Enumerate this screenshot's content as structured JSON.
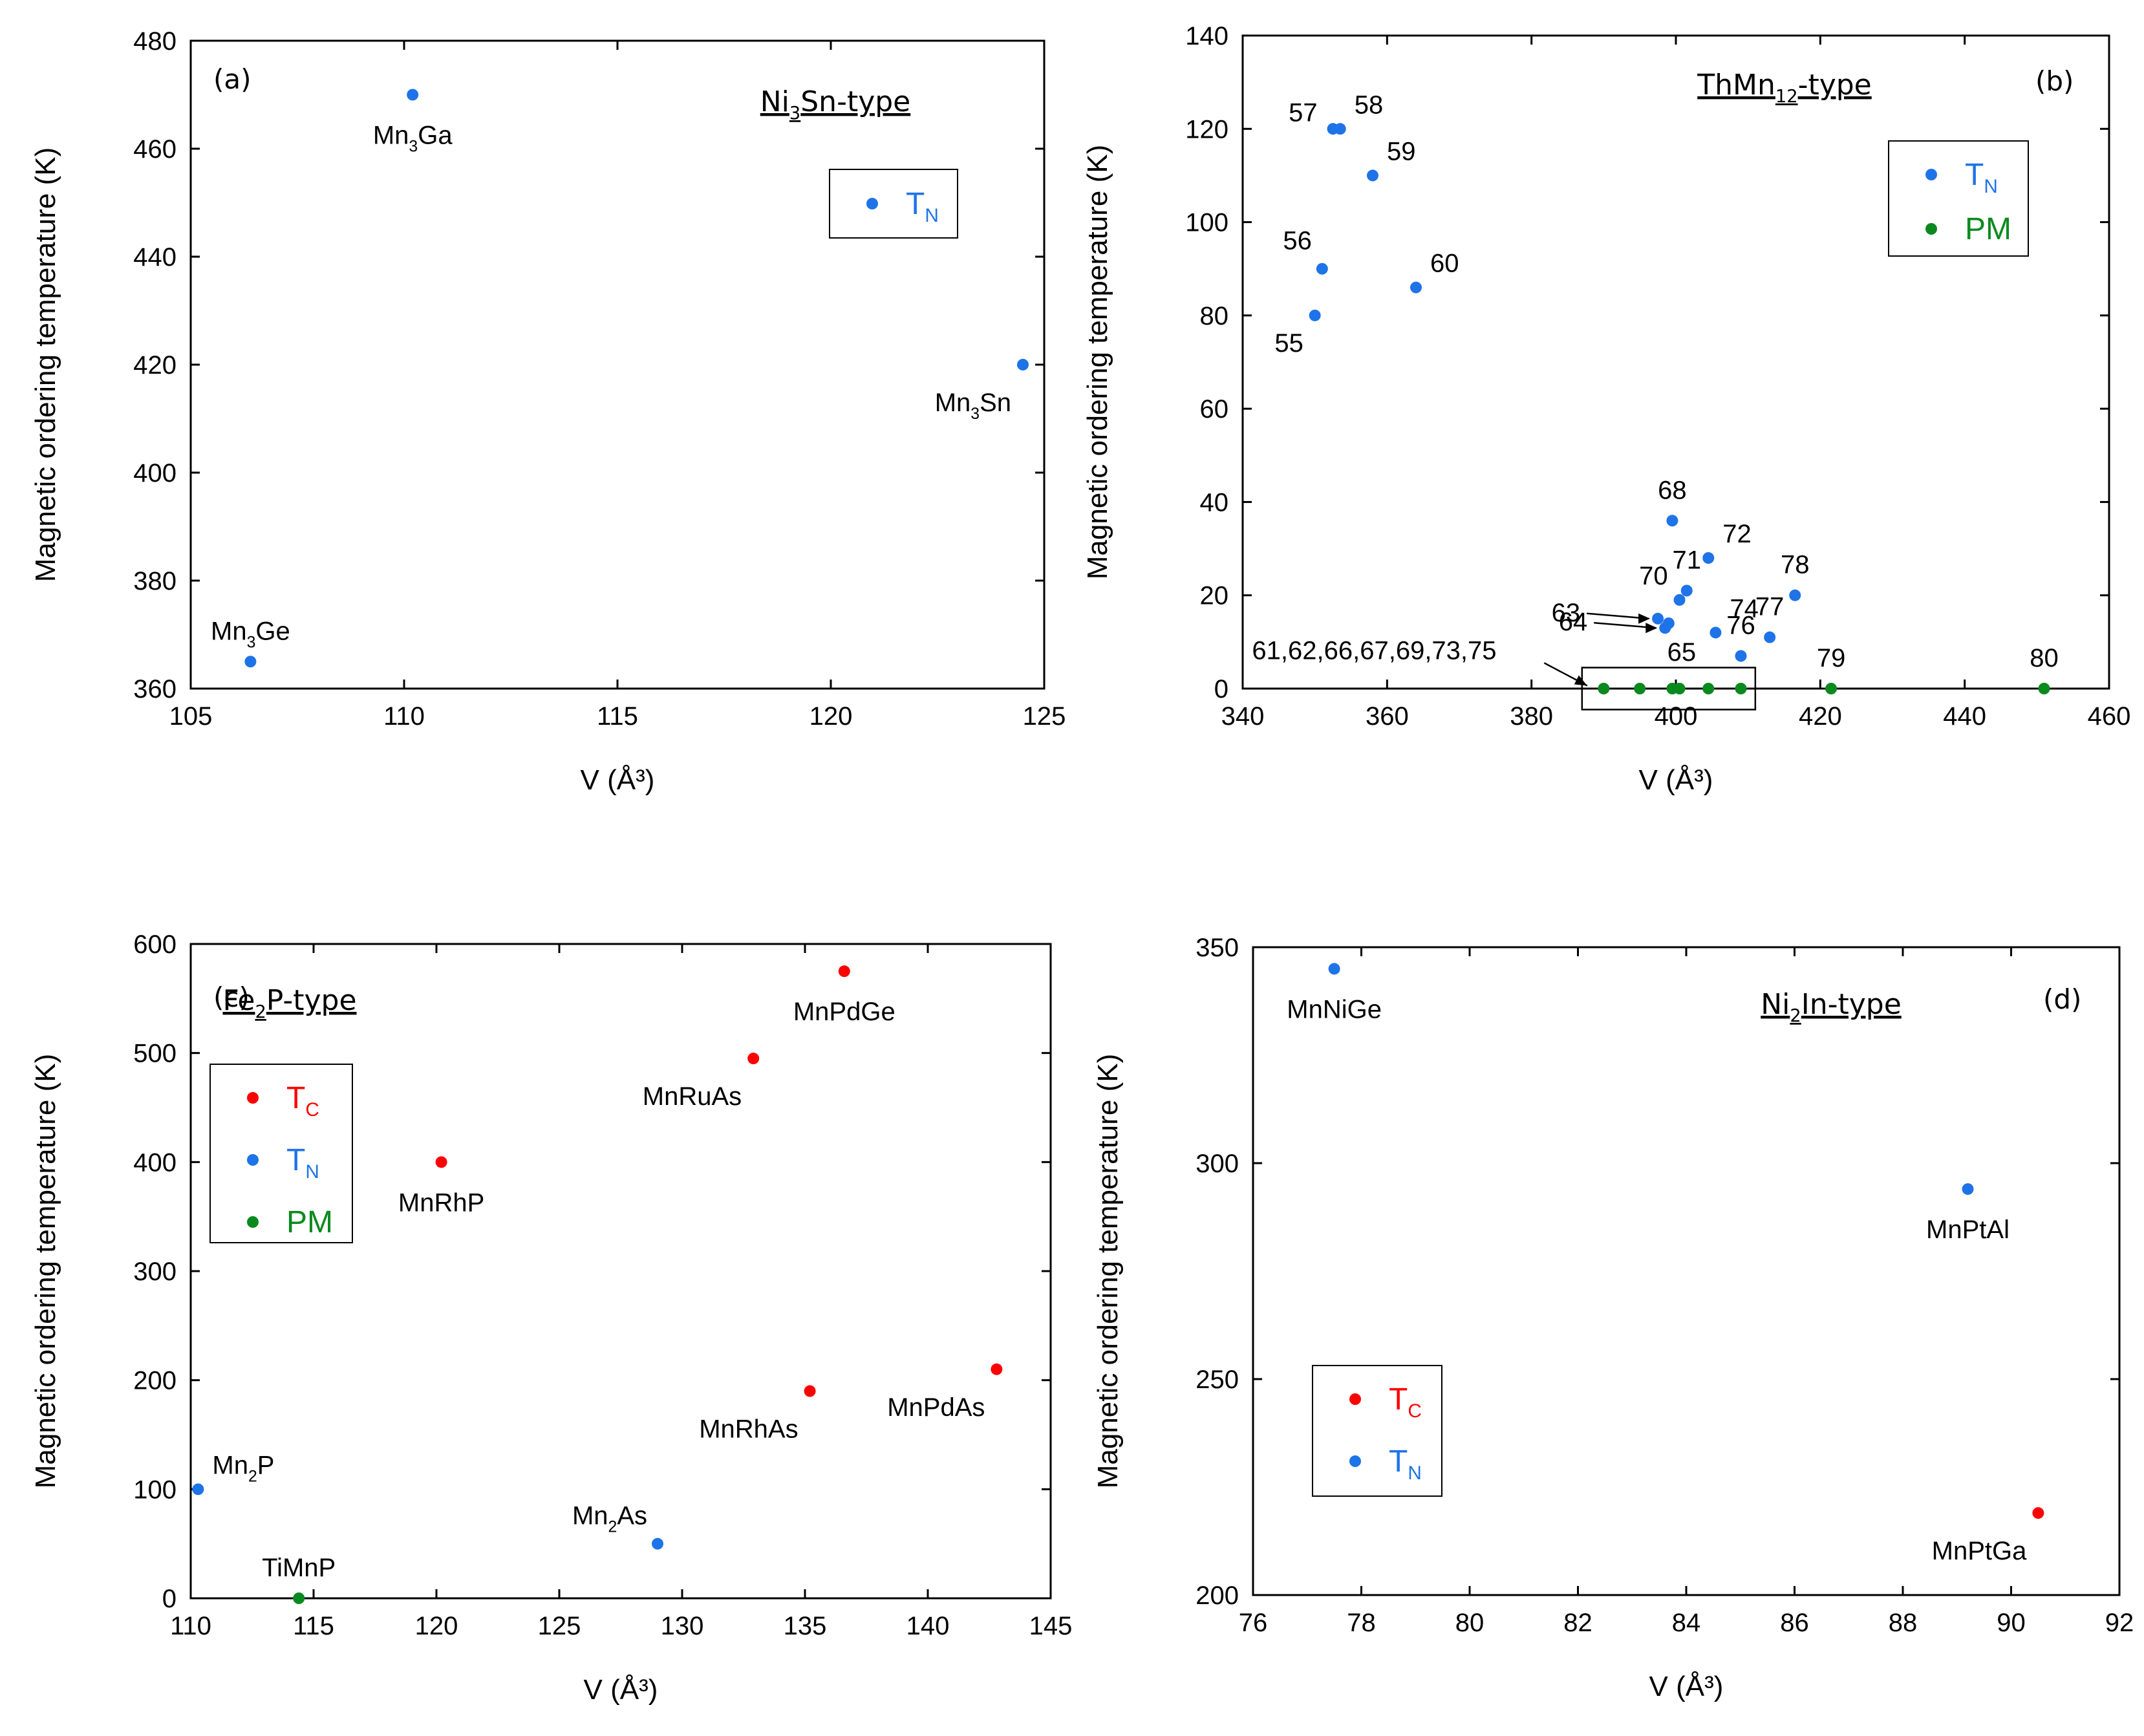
{
  "colors": {
    "T_C": "#ff0000",
    "T_N": "#1e73e8",
    "PM": "#0a8a1e"
  },
  "chart_data": [
    {
      "id": "a",
      "type": "scatter",
      "panel_tag": "(a)",
      "title": "Ni3Sn-type",
      "title_parts": {
        "main": "Ni",
        "sub": "3",
        "rest": "Sn-type"
      },
      "xlabel": "V (Å³)",
      "ylabel": "Magnetic ordering temperature (K)",
      "xlim": [
        105,
        125
      ],
      "ylim": [
        360,
        480
      ],
      "xticks": [
        105,
        110,
        115,
        120,
        125
      ],
      "yticks": [
        360,
        380,
        400,
        420,
        440,
        460,
        480
      ],
      "legend": [
        {
          "key": "T_N",
          "label": "T",
          "sub": "N"
        }
      ],
      "points": [
        {
          "x": 110.2,
          "y": 470,
          "series": "T_N",
          "label": "Mn3Ga",
          "lm": "Mn",
          "ls": "3",
          "lr": "Ga",
          "lpos": "below"
        },
        {
          "x": 124.5,
          "y": 420,
          "series": "T_N",
          "label": "Mn3Sn",
          "lm": "Mn",
          "ls": "3",
          "lr": "Sn",
          "lpos": "below-left"
        },
        {
          "x": 106.4,
          "y": 365,
          "series": "T_N",
          "label": "Mn3Ge",
          "lm": "Mn",
          "ls": "3",
          "lr": "Ge",
          "lpos": "above"
        }
      ]
    },
    {
      "id": "b",
      "type": "scatter",
      "panel_tag": "(b)",
      "title": "ThMn12-type",
      "title_parts": {
        "main": "ThMn",
        "sub": "12",
        "rest": "-type"
      },
      "xlabel": "V (Å³)",
      "ylabel": "Magnetic ordering temperature (K)",
      "xlim": [
        340,
        460
      ],
      "ylim": [
        0,
        140
      ],
      "xticks": [
        340,
        360,
        380,
        400,
        420,
        440,
        460
      ],
      "yticks": [
        0,
        20,
        40,
        60,
        80,
        100,
        120,
        140
      ],
      "legend": [
        {
          "key": "T_N",
          "label": "T",
          "sub": "N"
        },
        {
          "key": "PM",
          "label": "PM",
          "sub": ""
        }
      ],
      "group_label": "61,62,66,67,69,73,75",
      "points": [
        {
          "x": 352.5,
          "y": 120,
          "series": "T_N",
          "label": "57",
          "lpos": "left"
        },
        {
          "x": 353.5,
          "y": 120,
          "series": "T_N",
          "label": "58",
          "lpos": "above-right"
        },
        {
          "x": 358,
          "y": 110,
          "series": "T_N",
          "label": "59",
          "lpos": "above-right"
        },
        {
          "x": 351,
          "y": 90,
          "series": "T_N",
          "label": "56",
          "lpos": "above-left"
        },
        {
          "x": 364,
          "y": 86,
          "series": "T_N",
          "label": "60",
          "lpos": "above-right"
        },
        {
          "x": 350,
          "y": 80,
          "series": "T_N",
          "label": "55",
          "lpos": "below-left"
        },
        {
          "x": 399.5,
          "y": 36,
          "series": "T_N",
          "label": "68",
          "lpos": "above"
        },
        {
          "x": 404.5,
          "y": 28,
          "series": "T_N",
          "label": "72",
          "lpos": "above-right"
        },
        {
          "x": 401.5,
          "y": 21,
          "series": "T_N",
          "label": "71",
          "lpos": "above"
        },
        {
          "x": 400.5,
          "y": 19,
          "series": "T_N",
          "label": "70",
          "lpos": "left"
        },
        {
          "x": 416.5,
          "y": 20,
          "series": "T_N",
          "label": "78",
          "lpos": "above"
        },
        {
          "x": 397.5,
          "y": 15,
          "series": "T_N",
          "label": "63",
          "lpos": "arrow-left"
        },
        {
          "x": 398.5,
          "y": 13,
          "series": "T_N",
          "label": "64",
          "lpos": "arrow-left"
        },
        {
          "x": 399,
          "y": 14,
          "series": "T_N",
          "label": "65",
          "lpos": "below"
        },
        {
          "x": 405.5,
          "y": 12,
          "series": "T_N",
          "label": "74",
          "lpos": "above-right"
        },
        {
          "x": 413,
          "y": 11,
          "series": "T_N",
          "label": "77",
          "lpos": "above"
        },
        {
          "x": 409,
          "y": 7,
          "series": "T_N",
          "label": "76",
          "lpos": "above"
        },
        {
          "x": 390,
          "y": 0,
          "series": "PM",
          "label": "",
          "lpos": "none"
        },
        {
          "x": 395,
          "y": 0,
          "series": "PM",
          "label": "",
          "lpos": "none"
        },
        {
          "x": 399.5,
          "y": 0,
          "series": "PM",
          "label": "",
          "lpos": "none"
        },
        {
          "x": 400.5,
          "y": 0,
          "series": "PM",
          "label": "",
          "lpos": "none"
        },
        {
          "x": 404.5,
          "y": 0,
          "series": "PM",
          "label": "",
          "lpos": "none"
        },
        {
          "x": 409,
          "y": 0,
          "series": "PM",
          "label": "",
          "lpos": "none"
        },
        {
          "x": 421.5,
          "y": 0,
          "series": "PM",
          "label": "79",
          "lpos": "above"
        },
        {
          "x": 451,
          "y": 0,
          "series": "PM",
          "label": "80",
          "lpos": "above"
        }
      ]
    },
    {
      "id": "c",
      "type": "scatter",
      "panel_tag": "(c)",
      "title": "Fe2P-type",
      "title_parts": {
        "main": "Fe",
        "sub": "2",
        "rest": "P-type"
      },
      "xlabel": "V (Å³)",
      "ylabel": "Magnetic ordering temperature (K)",
      "xlim": [
        110,
        145
      ],
      "ylim": [
        0,
        600
      ],
      "xticks": [
        110,
        115,
        120,
        125,
        130,
        135,
        140,
        145
      ],
      "yticks": [
        0,
        100,
        200,
        300,
        400,
        500,
        600
      ],
      "legend": [
        {
          "key": "T_C",
          "label": "T",
          "sub": "C"
        },
        {
          "key": "T_N",
          "label": "T",
          "sub": "N"
        },
        {
          "key": "PM",
          "label": "PM",
          "sub": ""
        }
      ],
      "points": [
        {
          "x": 136.6,
          "y": 575,
          "series": "T_C",
          "label": "MnPdGe",
          "lpos": "below"
        },
        {
          "x": 132.9,
          "y": 495,
          "series": "T_C",
          "label": "MnRuAs",
          "lpos": "below-left"
        },
        {
          "x": 120.2,
          "y": 400,
          "series": "T_C",
          "label": "MnRhP",
          "lpos": "below"
        },
        {
          "x": 135.2,
          "y": 190,
          "series": "T_C",
          "label": "MnRhAs",
          "lpos": "below-left"
        },
        {
          "x": 142.8,
          "y": 210,
          "series": "T_C",
          "label": "MnPdAs",
          "lpos": "below-left"
        },
        {
          "x": 110.3,
          "y": 100,
          "series": "T_N",
          "label": "Mn2P",
          "lm": "Mn",
          "ls": "2",
          "lr": "P",
          "lpos": "above-right"
        },
        {
          "x": 129,
          "y": 50,
          "series": "T_N",
          "label": "Mn2As",
          "lm": "Mn",
          "ls": "2",
          "lr": "As",
          "lpos": "above-left"
        },
        {
          "x": 114.4,
          "y": 0,
          "series": "PM",
          "label": "TiMnP",
          "lpos": "above"
        }
      ]
    },
    {
      "id": "d",
      "type": "scatter",
      "panel_tag": "(d)",
      "title": "Ni2In-type",
      "title_parts": {
        "main": "Ni",
        "sub": "2",
        "rest": "In-type"
      },
      "xlabel": "V (Å³)",
      "ylabel": "Magnetic ordering temperature (K)",
      "xlim": [
        76,
        92
      ],
      "ylim": [
        200,
        350
      ],
      "xticks": [
        76,
        78,
        80,
        82,
        84,
        86,
        88,
        90,
        92
      ],
      "yticks": [
        200,
        250,
        300,
        350
      ],
      "legend": [
        {
          "key": "T_C",
          "label": "T",
          "sub": "C"
        },
        {
          "key": "T_N",
          "label": "T",
          "sub": "N"
        }
      ],
      "points": [
        {
          "x": 77.5,
          "y": 345,
          "series": "T_N",
          "label": "MnNiGe",
          "lpos": "below"
        },
        {
          "x": 89.2,
          "y": 294,
          "series": "T_N",
          "label": "MnPtAl",
          "lpos": "below"
        },
        {
          "x": 90.5,
          "y": 219,
          "series": "T_C",
          "label": "MnPtGa",
          "lpos": "below-left"
        }
      ]
    }
  ]
}
